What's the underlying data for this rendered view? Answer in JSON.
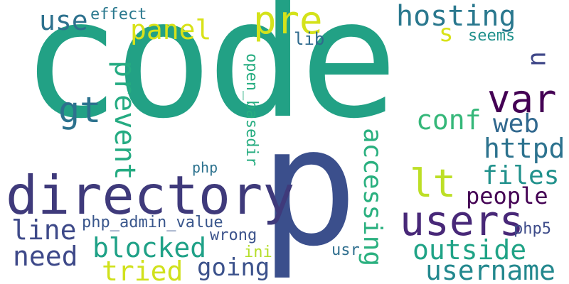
{
  "words": [
    {
      "text": "code",
      "color": "#22a185"
    },
    {
      "text": "p",
      "color": "#3b4f8c"
    },
    {
      "text": "directory",
      "color": "#3f3a7b"
    },
    {
      "text": "users",
      "color": "#482878"
    },
    {
      "text": "pre",
      "color": "#d4e21a"
    },
    {
      "text": "var",
      "color": "#440154"
    },
    {
      "text": "gt",
      "color": "#2c728e"
    },
    {
      "text": "lt",
      "color": "#bddf26"
    },
    {
      "text": "hosting",
      "color": "#2a788e"
    },
    {
      "text": "panel",
      "color": "#d8e219"
    },
    {
      "text": "use",
      "color": "#2d718e"
    },
    {
      "text": "effect",
      "color": "#2a788e"
    },
    {
      "text": "s",
      "color": "#d8e219"
    },
    {
      "text": "seems",
      "color": "#21918c"
    },
    {
      "text": "u",
      "color": "#3f4788"
    },
    {
      "text": "lib",
      "color": "#2f6b8e"
    },
    {
      "text": "open_basedir",
      "color": "#27ad81"
    },
    {
      "text": "prevent",
      "color": "#25ab82"
    },
    {
      "text": "conf",
      "color": "#35b779"
    },
    {
      "text": "web",
      "color": "#31688e"
    },
    {
      "text": "httpd",
      "color": "#2c728e"
    },
    {
      "text": "accessing",
      "color": "#2ab07f"
    },
    {
      "text": "files",
      "color": "#21918c"
    },
    {
      "text": "people",
      "color": "#440154"
    },
    {
      "text": "php",
      "color": "#2c728e"
    },
    {
      "text": "line",
      "color": "#3e4a89"
    },
    {
      "text": "php_admin_value",
      "color": "#39568c"
    },
    {
      "text": "wrong",
      "color": "#3b528b"
    },
    {
      "text": "need",
      "color": "#3e4989"
    },
    {
      "text": "blocked",
      "color": "#1fa187"
    },
    {
      "text": "ini",
      "color": "#b5de2b"
    },
    {
      "text": "usr",
      "color": "#2e6e8e"
    },
    {
      "text": "outside",
      "color": "#20a386"
    },
    {
      "text": "php5",
      "color": "#3e4c8a"
    },
    {
      "text": "tried",
      "color": "#d0e11c"
    },
    {
      "text": "going",
      "color": "#3b518b"
    },
    {
      "text": "username",
      "color": "#23888e"
    }
  ]
}
